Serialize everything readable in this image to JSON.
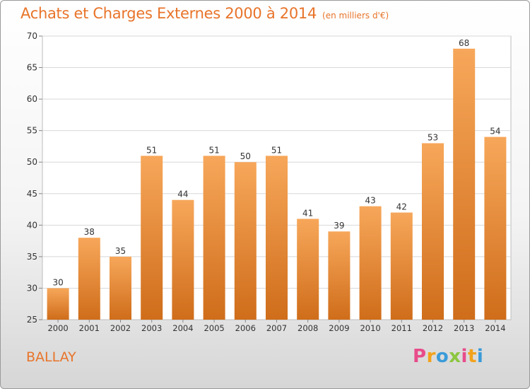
{
  "header": {
    "title": "Achats et Charges Externes 2000 à 2014",
    "unit": "(en milliers d'€)"
  },
  "footer": {
    "place": "BALLAY",
    "logo": "Proxiti",
    "logo_colors": [
      "#e84c8a",
      "#f2a21c",
      "#3a9bd9",
      "#8cc63f",
      "#e84c8a",
      "#f2a21c",
      "#3a9bd9"
    ]
  },
  "colors": {
    "bar_top": "#f7a75a",
    "bar_bottom": "#cf6d1a",
    "grid": "#d8d8d8",
    "text": "#333333",
    "accent": "#e8742a"
  },
  "chart_data": {
    "type": "bar",
    "title": "Achats et Charges Externes 2000 à 2014",
    "subtitle": "(en milliers d'€)",
    "categories": [
      "2000",
      "2001",
      "2002",
      "2003",
      "2004",
      "2005",
      "2006",
      "2007",
      "2008",
      "2009",
      "2010",
      "2011",
      "2012",
      "2013",
      "2014"
    ],
    "values": [
      30,
      38,
      35,
      51,
      44,
      51,
      50,
      51,
      41,
      39,
      43,
      42,
      53,
      68,
      54
    ],
    "ylim": [
      25,
      70
    ],
    "yticks": [
      25,
      30,
      35,
      40,
      45,
      50,
      55,
      60,
      65,
      70
    ],
    "grid": true,
    "data_labels": true
  }
}
